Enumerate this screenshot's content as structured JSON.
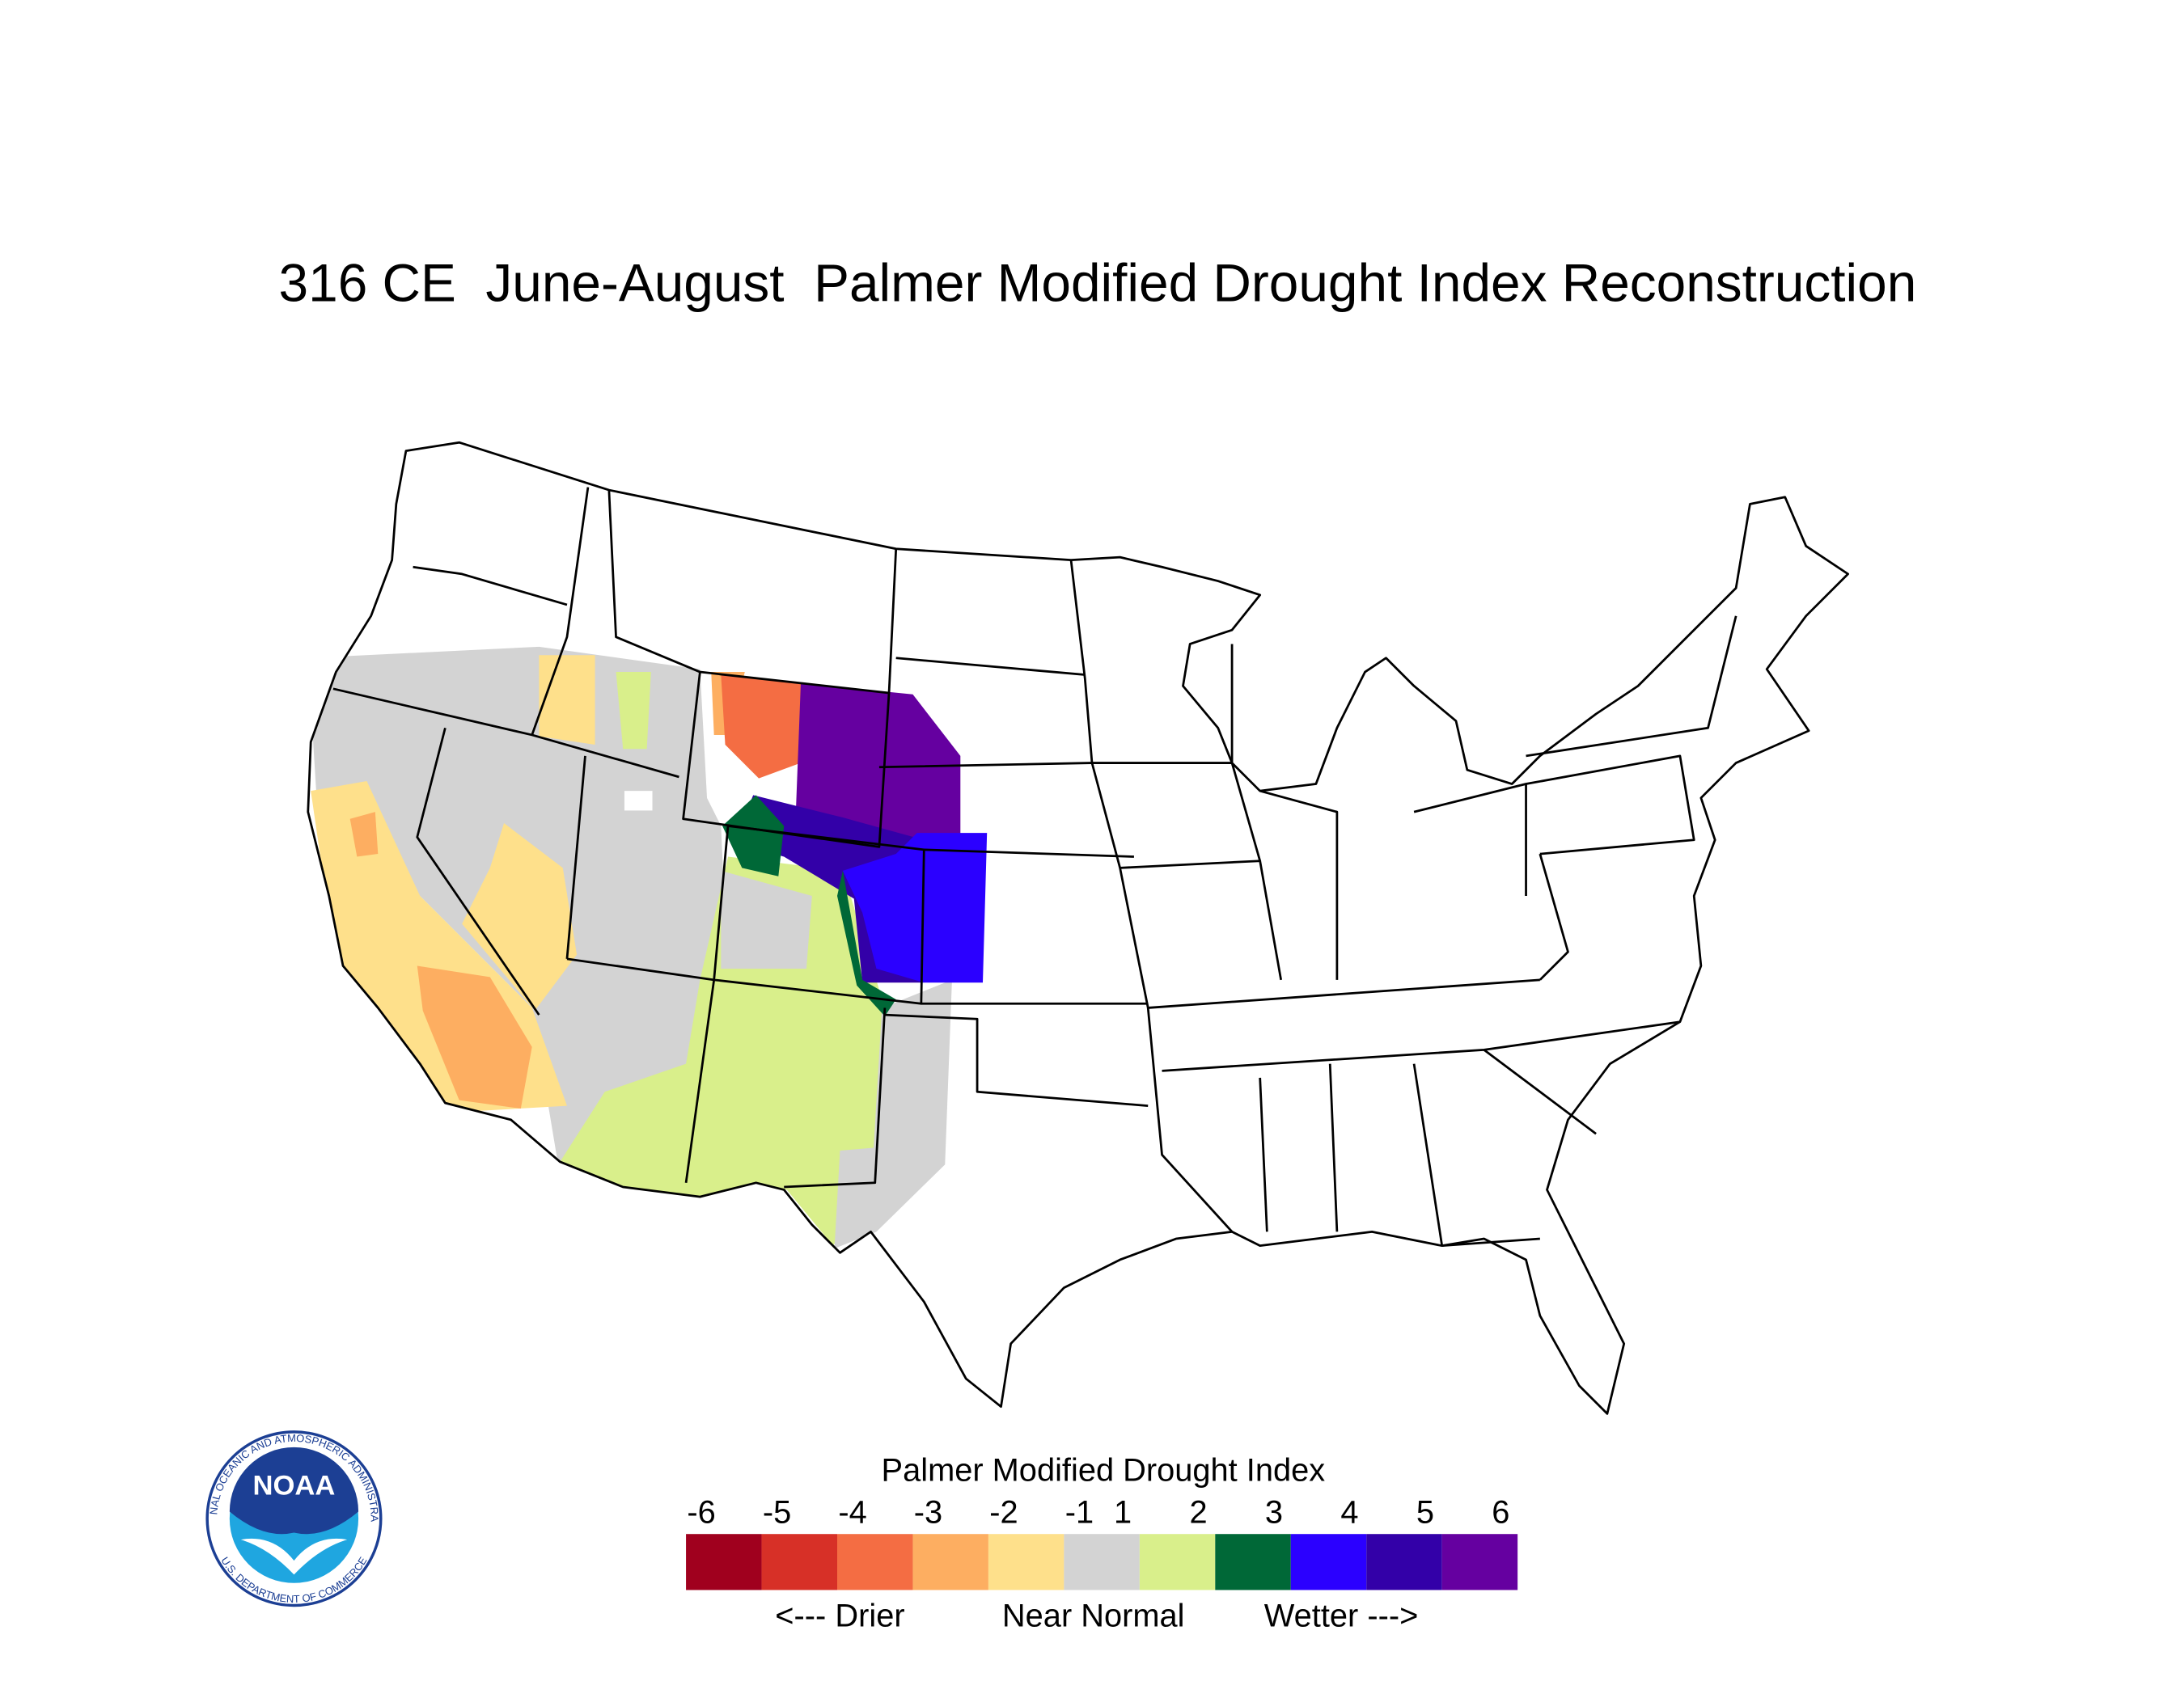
{
  "header": {
    "title": "316 CE  June-August  Palmer Modified Drought Index Reconstruction"
  },
  "legend": {
    "title": "Palmer Modified Drought Index",
    "ticks": [
      -6,
      -5,
      -4,
      -3,
      -2,
      -1,
      1,
      2,
      3,
      4,
      5,
      6
    ],
    "colors": [
      "#a0001e",
      "#d73027",
      "#f46d43",
      "#fdae61",
      "#fee08b",
      "#d3d3d3",
      "#d9ef8b",
      "#006837",
      "#2b00ff",
      "#3300a8",
      "#6500a0"
    ],
    "captions": [
      "<--- Drier",
      "Near Normal",
      "Wetter --->"
    ]
  },
  "logo": {
    "text": "NOAA",
    "ring_top": "NATIONAL OCEANIC AND ATMOSPHERIC ADMINISTRATION",
    "ring_bottom": "U.S. DEPARTMENT OF COMMERCE"
  }
}
